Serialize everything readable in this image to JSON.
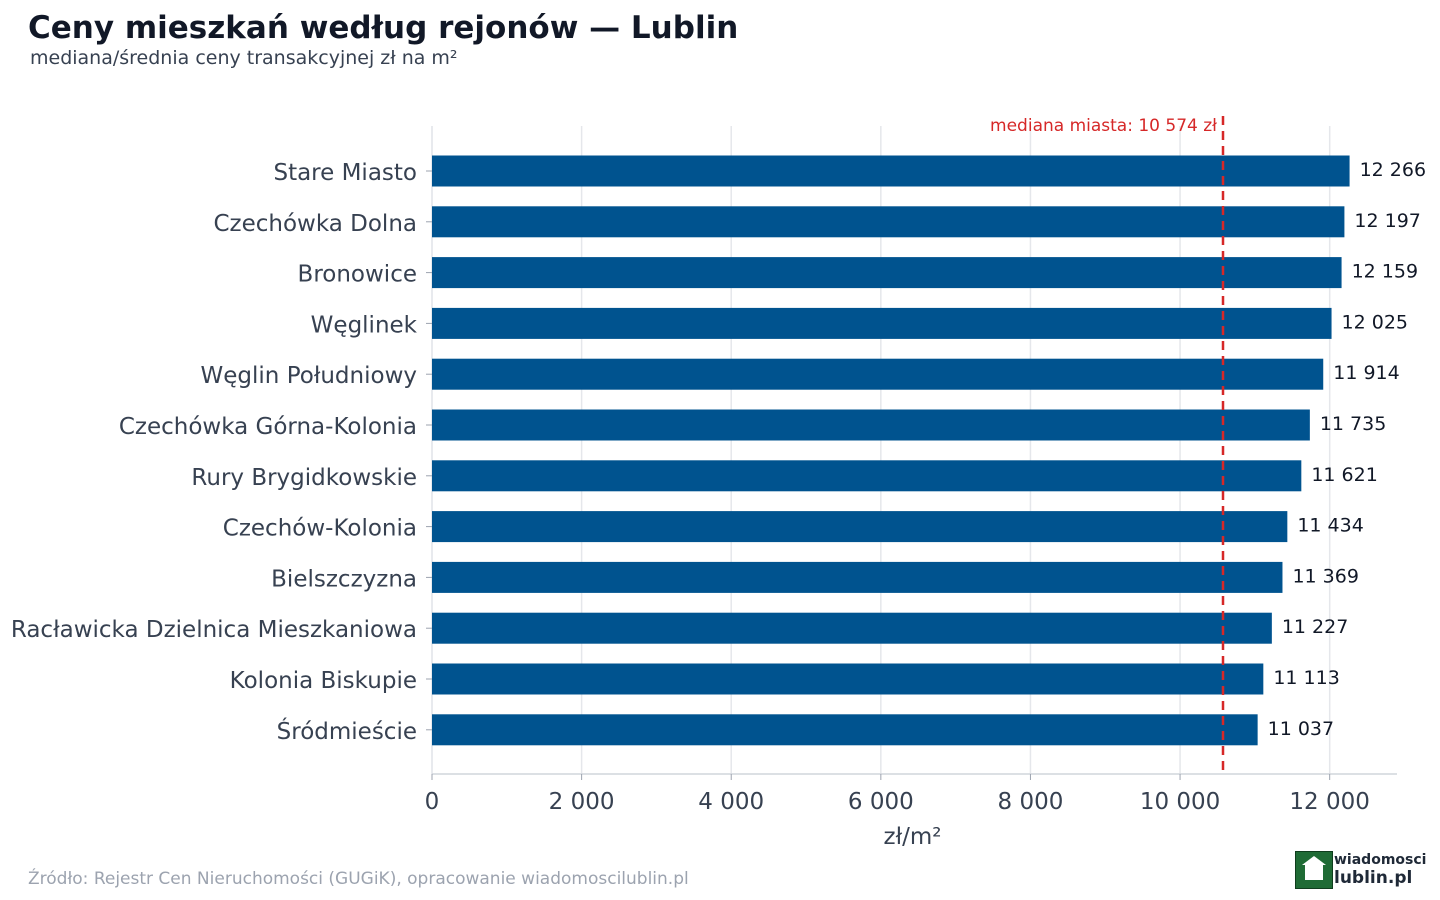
{
  "title": "Ceny mieszkań według rejonów — Lublin",
  "subtitle": "mediana/średnia ceny transakcyjnej zł na m²",
  "source": "Źródło: Rejestr Cen Nieruchomości (GUGiK), opracowanie wiadomoscilublin.pl",
  "logo": {
    "line1": "wiadomosci",
    "line2": "lublin.pl"
  },
  "colors": {
    "bar": "#00538f",
    "median_line": "#d62828",
    "grid": "#e5e7eb",
    "text": "#374151"
  },
  "chart_data": {
    "type": "bar",
    "orientation": "horizontal",
    "categories": [
      "Stare Miasto",
      "Czechówka Dolna",
      "Bronowice",
      "Węglinek",
      "Węglin Południowy",
      "Czechówka Górna-Kolonia",
      "Rury Brygidkowskie",
      "Czechów-Kolonia",
      "Bielszczyzna",
      "Racławicka Dzielnica Mieszkaniowa",
      "Kolonia Biskupie",
      "Śródmieście"
    ],
    "values": [
      12266,
      12197,
      12159,
      12025,
      11914,
      11735,
      11621,
      11434,
      11369,
      11227,
      11113,
      11037
    ],
    "value_labels": [
      "12 266",
      "12 197",
      "12 159",
      "12 025",
      "11 914",
      "11 735",
      "11 621",
      "11 434",
      "11 369",
      "11 227",
      "11 113",
      "11 037"
    ],
    "xlabel": "zł/m²",
    "ylabel": "",
    "xlim": [
      0,
      12900
    ],
    "xticks": [
      0,
      2000,
      4000,
      6000,
      8000,
      10000,
      12000
    ],
    "xtick_labels": [
      "0",
      "2 000",
      "4 000",
      "6 000",
      "8 000",
      "10 000",
      "12 000"
    ],
    "reference_line": {
      "value": 10574,
      "label": "mediana miasta: 10 574 zł",
      "style": "dashed"
    },
    "grid": "vertical"
  }
}
